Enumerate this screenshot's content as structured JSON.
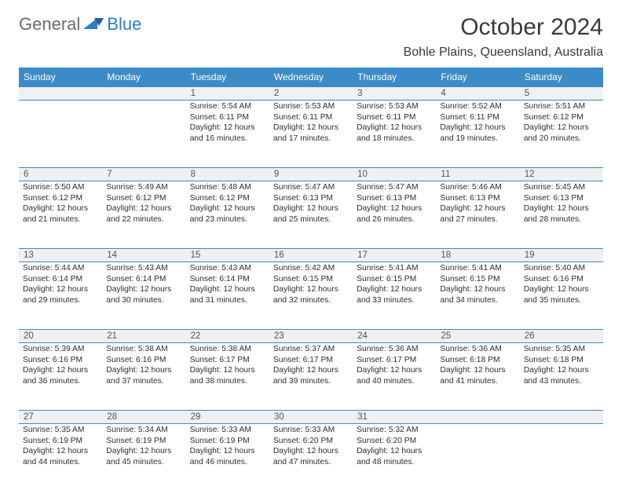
{
  "brand": {
    "part1": "General",
    "part2": "Blue"
  },
  "title": "October 2024",
  "location": "Bohle Plains, Queensland, Australia",
  "colors": {
    "header_bg": "#3b8bc8",
    "header_text": "#ffffff",
    "daynum_bg": "#eef0f1",
    "rule": "#3b8bc8",
    "body_text": "#2e2e2e",
    "brand_gray": "#6b6b6b",
    "brand_blue": "#2f7dc0",
    "background": "#ffffff"
  },
  "typography": {
    "title_fontsize": 30,
    "location_fontsize": 16,
    "header_fontsize": 12,
    "daynum_fontsize": 11.5,
    "cell_fontsize": 10.3,
    "font_family": "Arial"
  },
  "layout": {
    "columns": 7,
    "rows": 5,
    "first_weekday_index": 2
  },
  "weekdays": [
    "Sunday",
    "Monday",
    "Tuesday",
    "Wednesday",
    "Thursday",
    "Friday",
    "Saturday"
  ],
  "days": [
    {
      "n": "1",
      "sunrise": "Sunrise: 5:54 AM",
      "sunset": "Sunset: 6:11 PM",
      "daylight": "Daylight: 12 hours and 16 minutes."
    },
    {
      "n": "2",
      "sunrise": "Sunrise: 5:53 AM",
      "sunset": "Sunset: 6:11 PM",
      "daylight": "Daylight: 12 hours and 17 minutes."
    },
    {
      "n": "3",
      "sunrise": "Sunrise: 5:53 AM",
      "sunset": "Sunset: 6:11 PM",
      "daylight": "Daylight: 12 hours and 18 minutes."
    },
    {
      "n": "4",
      "sunrise": "Sunrise: 5:52 AM",
      "sunset": "Sunset: 6:11 PM",
      "daylight": "Daylight: 12 hours and 19 minutes."
    },
    {
      "n": "5",
      "sunrise": "Sunrise: 5:51 AM",
      "sunset": "Sunset: 6:12 PM",
      "daylight": "Daylight: 12 hours and 20 minutes."
    },
    {
      "n": "6",
      "sunrise": "Sunrise: 5:50 AM",
      "sunset": "Sunset: 6:12 PM",
      "daylight": "Daylight: 12 hours and 21 minutes."
    },
    {
      "n": "7",
      "sunrise": "Sunrise: 5:49 AM",
      "sunset": "Sunset: 6:12 PM",
      "daylight": "Daylight: 12 hours and 22 minutes."
    },
    {
      "n": "8",
      "sunrise": "Sunrise: 5:48 AM",
      "sunset": "Sunset: 6:12 PM",
      "daylight": "Daylight: 12 hours and 23 minutes."
    },
    {
      "n": "9",
      "sunrise": "Sunrise: 5:47 AM",
      "sunset": "Sunset: 6:13 PM",
      "daylight": "Daylight: 12 hours and 25 minutes."
    },
    {
      "n": "10",
      "sunrise": "Sunrise: 5:47 AM",
      "sunset": "Sunset: 6:13 PM",
      "daylight": "Daylight: 12 hours and 26 minutes."
    },
    {
      "n": "11",
      "sunrise": "Sunrise: 5:46 AM",
      "sunset": "Sunset: 6:13 PM",
      "daylight": "Daylight: 12 hours and 27 minutes."
    },
    {
      "n": "12",
      "sunrise": "Sunrise: 5:45 AM",
      "sunset": "Sunset: 6:13 PM",
      "daylight": "Daylight: 12 hours and 28 minutes."
    },
    {
      "n": "13",
      "sunrise": "Sunrise: 5:44 AM",
      "sunset": "Sunset: 6:14 PM",
      "daylight": "Daylight: 12 hours and 29 minutes."
    },
    {
      "n": "14",
      "sunrise": "Sunrise: 5:43 AM",
      "sunset": "Sunset: 6:14 PM",
      "daylight": "Daylight: 12 hours and 30 minutes."
    },
    {
      "n": "15",
      "sunrise": "Sunrise: 5:43 AM",
      "sunset": "Sunset: 6:14 PM",
      "daylight": "Daylight: 12 hours and 31 minutes."
    },
    {
      "n": "16",
      "sunrise": "Sunrise: 5:42 AM",
      "sunset": "Sunset: 6:15 PM",
      "daylight": "Daylight: 12 hours and 32 minutes."
    },
    {
      "n": "17",
      "sunrise": "Sunrise: 5:41 AM",
      "sunset": "Sunset: 6:15 PM",
      "daylight": "Daylight: 12 hours and 33 minutes."
    },
    {
      "n": "18",
      "sunrise": "Sunrise: 5:41 AM",
      "sunset": "Sunset: 6:15 PM",
      "daylight": "Daylight: 12 hours and 34 minutes."
    },
    {
      "n": "19",
      "sunrise": "Sunrise: 5:40 AM",
      "sunset": "Sunset: 6:16 PM",
      "daylight": "Daylight: 12 hours and 35 minutes."
    },
    {
      "n": "20",
      "sunrise": "Sunrise: 5:39 AM",
      "sunset": "Sunset: 6:16 PM",
      "daylight": "Daylight: 12 hours and 36 minutes."
    },
    {
      "n": "21",
      "sunrise": "Sunrise: 5:38 AM",
      "sunset": "Sunset: 6:16 PM",
      "daylight": "Daylight: 12 hours and 37 minutes."
    },
    {
      "n": "22",
      "sunrise": "Sunrise: 5:38 AM",
      "sunset": "Sunset: 6:17 PM",
      "daylight": "Daylight: 12 hours and 38 minutes."
    },
    {
      "n": "23",
      "sunrise": "Sunrise: 5:37 AM",
      "sunset": "Sunset: 6:17 PM",
      "daylight": "Daylight: 12 hours and 39 minutes."
    },
    {
      "n": "24",
      "sunrise": "Sunrise: 5:36 AM",
      "sunset": "Sunset: 6:17 PM",
      "daylight": "Daylight: 12 hours and 40 minutes."
    },
    {
      "n": "25",
      "sunrise": "Sunrise: 5:36 AM",
      "sunset": "Sunset: 6:18 PM",
      "daylight": "Daylight: 12 hours and 41 minutes."
    },
    {
      "n": "26",
      "sunrise": "Sunrise: 5:35 AM",
      "sunset": "Sunset: 6:18 PM",
      "daylight": "Daylight: 12 hours and 43 minutes."
    },
    {
      "n": "27",
      "sunrise": "Sunrise: 5:35 AM",
      "sunset": "Sunset: 6:19 PM",
      "daylight": "Daylight: 12 hours and 44 minutes."
    },
    {
      "n": "28",
      "sunrise": "Sunrise: 5:34 AM",
      "sunset": "Sunset: 6:19 PM",
      "daylight": "Daylight: 12 hours and 45 minutes."
    },
    {
      "n": "29",
      "sunrise": "Sunrise: 5:33 AM",
      "sunset": "Sunset: 6:19 PM",
      "daylight": "Daylight: 12 hours and 46 minutes."
    },
    {
      "n": "30",
      "sunrise": "Sunrise: 5:33 AM",
      "sunset": "Sunset: 6:20 PM",
      "daylight": "Daylight: 12 hours and 47 minutes."
    },
    {
      "n": "31",
      "sunrise": "Sunrise: 5:32 AM",
      "sunset": "Sunset: 6:20 PM",
      "daylight": "Daylight: 12 hours and 48 minutes."
    }
  ]
}
